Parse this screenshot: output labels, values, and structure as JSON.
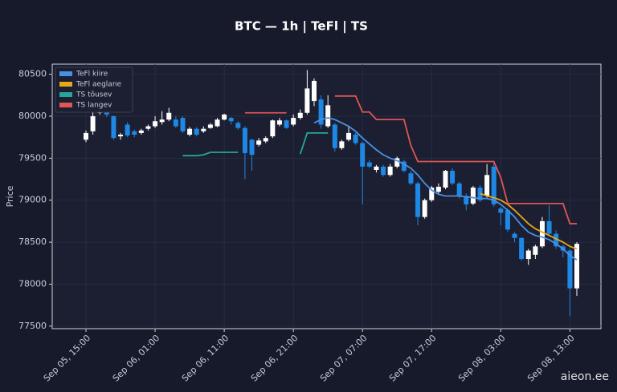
{
  "chart_data": {
    "type": "candlestick",
    "title": "BTC — 1h  |  TeFl  |  TS",
    "y_label": "Price",
    "watermark": "aieon.ee",
    "x": [
      "Sep 05, 15:00",
      "Sep 05, 16:00",
      "Sep 05, 17:00",
      "Sep 05, 18:00",
      "Sep 05, 19:00",
      "Sep 05, 20:00",
      "Sep 05, 21:00",
      "Sep 05, 22:00",
      "Sep 05, 23:00",
      "Sep 06, 00:00",
      "Sep 06, 01:00",
      "Sep 06, 02:00",
      "Sep 06, 03:00",
      "Sep 06, 04:00",
      "Sep 06, 05:00",
      "Sep 06, 06:00",
      "Sep 06, 07:00",
      "Sep 06, 08:00",
      "Sep 06, 09:00",
      "Sep 06, 10:00",
      "Sep 06, 11:00",
      "Sep 06, 12:00",
      "Sep 06, 13:00",
      "Sep 06, 14:00",
      "Sep 06, 15:00",
      "Sep 06, 16:00",
      "Sep 06, 17:00",
      "Sep 06, 18:00",
      "Sep 06, 19:00",
      "Sep 06, 20:00",
      "Sep 06, 21:00",
      "Sep 06, 22:00",
      "Sep 06, 23:00",
      "Sep 07, 00:00",
      "Sep 07, 01:00",
      "Sep 07, 02:00",
      "Sep 07, 03:00",
      "Sep 07, 04:00",
      "Sep 07, 05:00",
      "Sep 07, 06:00",
      "Sep 07, 07:00",
      "Sep 07, 08:00",
      "Sep 07, 09:00",
      "Sep 07, 10:00",
      "Sep 07, 11:00",
      "Sep 07, 12:00",
      "Sep 07, 13:00",
      "Sep 07, 14:00",
      "Sep 07, 15:00",
      "Sep 07, 16:00",
      "Sep 07, 17:00",
      "Sep 07, 18:00",
      "Sep 07, 19:00",
      "Sep 07, 20:00",
      "Sep 07, 21:00",
      "Sep 07, 22:00",
      "Sep 07, 23:00",
      "Sep 08, 00:00",
      "Sep 08, 01:00",
      "Sep 08, 02:00",
      "Sep 08, 03:00",
      "Sep 08, 04:00",
      "Sep 08, 05:00",
      "Sep 08, 06:00",
      "Sep 08, 07:00",
      "Sep 08, 08:00",
      "Sep 08, 09:00",
      "Sep 08, 10:00",
      "Sep 08, 11:00",
      "Sep 08, 12:00",
      "Sep 08, 13:00",
      "Sep 08, 14:00"
    ],
    "open": [
      79720,
      79820,
      80040,
      80070,
      80000,
      79760,
      79900,
      79820,
      79800,
      79850,
      79880,
      79930,
      79960,
      79960,
      79980,
      79780,
      79850,
      79820,
      79860,
      79880,
      79960,
      79980,
      79920,
      79860,
      79720,
      79660,
      79700,
      79760,
      79900,
      79950,
      79900,
      79980,
      80040,
      80180,
      80200,
      79880,
      79900,
      79620,
      79720,
      79780,
      79680,
      79450,
      79360,
      79400,
      79300,
      79400,
      79460,
      79320,
      79200,
      78800,
      79000,
      79100,
      79150,
      79350,
      79200,
      79050,
      78960,
      79150,
      79050,
      79400,
      78900,
      78880,
      78600,
      78550,
      78300,
      78350,
      78450,
      78750,
      78600,
      78450,
      78400,
      77950
    ],
    "high": [
      79830,
      80060,
      80120,
      80100,
      80010,
      79800,
      79930,
      79840,
      79850,
      79900,
      80000,
      80060,
      80100,
      80000,
      80000,
      79870,
      79870,
      79880,
      79920,
      79980,
      80030,
      79990,
      79940,
      79880,
      79730,
      79740,
      79760,
      79960,
      79980,
      79960,
      80020,
      80080,
      80550,
      80450,
      80250,
      80250,
      79920,
      79720,
      79870,
      79800,
      79700,
      79480,
      79420,
      79420,
      79430,
      79520,
      79480,
      79350,
      79220,
      79020,
      79170,
      79200,
      79360,
      79380,
      79220,
      79080,
      79170,
      79180,
      79430,
      79450,
      78920,
      78900,
      78620,
      78560,
      78420,
      78470,
      78800,
      78940,
      78640,
      78470,
      78420,
      78500
    ],
    "low": [
      79690,
      79780,
      80020,
      79990,
      79720,
      79720,
      79750,
      79750,
      79780,
      79830,
      79860,
      79900,
      79940,
      79860,
      79800,
      79760,
      79760,
      79800,
      79850,
      79870,
      79950,
      79900,
      79840,
      79250,
      79350,
      79640,
      79680,
      79740,
      79880,
      79850,
      79880,
      79960,
      80020,
      80120,
      79850,
      79860,
      79580,
      79600,
      79700,
      79660,
      78950,
      79380,
      79330,
      79280,
      79280,
      79380,
      79330,
      79180,
      78700,
      78780,
      78980,
      79080,
      79130,
      79180,
      79020,
      78880,
      78940,
      78980,
      79030,
      78920,
      78700,
      78620,
      78500,
      78280,
      78230,
      78300,
      78430,
      78580,
      78420,
      78320,
      77620,
      77860
    ],
    "close": [
      79800,
      80000,
      80080,
      80020,
      79740,
      79780,
      79770,
      79780,
      79830,
      79880,
      79940,
      79960,
      80040,
      79880,
      79820,
      79850,
      79780,
      79850,
      79900,
      79960,
      80020,
      79940,
      79860,
      79560,
      79540,
      79710,
      79740,
      79950,
      79950,
      79860,
      79980,
      80040,
      80330,
      80420,
      79900,
      80130,
      79620,
      79700,
      79800,
      79680,
      79400,
      79400,
      79400,
      79300,
      79400,
      79500,
      79350,
      79200,
      78800,
      79000,
      79150,
      79160,
      79350,
      79200,
      79050,
      78950,
      79150,
      79000,
      79300,
      78950,
      78850,
      78650,
      78550,
      78300,
      78400,
      78450,
      78750,
      78600,
      78450,
      78400,
      77950,
      78480
    ],
    "up_color": "#ffffff",
    "down_color": "#1e88e5",
    "series": [
      {
        "name": "TeFl kiire",
        "color": "#4a90e2",
        "values": [
          null,
          null,
          null,
          null,
          null,
          null,
          null,
          null,
          null,
          null,
          null,
          null,
          null,
          null,
          null,
          null,
          null,
          null,
          null,
          null,
          null,
          null,
          null,
          null,
          null,
          null,
          null,
          null,
          null,
          null,
          null,
          null,
          null,
          79920,
          79960,
          79980,
          79960,
          79920,
          79880,
          79820,
          79740,
          79670,
          79600,
          79540,
          79500,
          79470,
          79430,
          79380,
          79300,
          79200,
          79120,
          79070,
          79050,
          79050,
          79050,
          79040,
          79030,
          79020,
          79020,
          79000,
          78950,
          78880,
          78800,
          78700,
          78620,
          78580,
          78560,
          78530,
          78480,
          78420,
          78340,
          78290
        ]
      },
      {
        "name": "TeFl aeglane",
        "color": "#e6a817",
        "values": [
          null,
          null,
          null,
          null,
          null,
          null,
          null,
          null,
          null,
          null,
          null,
          null,
          null,
          null,
          null,
          null,
          null,
          null,
          null,
          null,
          null,
          null,
          null,
          null,
          null,
          null,
          null,
          null,
          null,
          null,
          null,
          null,
          null,
          null,
          null,
          null,
          null,
          null,
          null,
          null,
          null,
          null,
          null,
          null,
          null,
          null,
          null,
          null,
          null,
          null,
          null,
          null,
          null,
          null,
          null,
          null,
          null,
          79080,
          79050,
          79030,
          79000,
          78950,
          78880,
          78800,
          78720,
          78660,
          78620,
          78580,
          78540,
          78500,
          78450,
          78420
        ]
      },
      {
        "name": "TS tõusev",
        "color": "#26a69a",
        "values": [
          null,
          null,
          null,
          null,
          null,
          null,
          null,
          null,
          null,
          null,
          null,
          null,
          null,
          null,
          79530,
          79530,
          79530,
          79540,
          79570,
          79570,
          79570,
          79570,
          79570,
          null,
          null,
          null,
          null,
          null,
          null,
          null,
          null,
          79550,
          79800,
          79800,
          79800,
          79800,
          null,
          null,
          null,
          null,
          null,
          null,
          null,
          null,
          null,
          null,
          null,
          null,
          null,
          null,
          null,
          null,
          null,
          null,
          null,
          null,
          null,
          null,
          null,
          null,
          null,
          null,
          null,
          null,
          null,
          null,
          null,
          null,
          null,
          null,
          null,
          null
        ]
      },
      {
        "name": "TS langev",
        "color": "#e05555",
        "values": [
          null,
          null,
          null,
          null,
          null,
          null,
          null,
          null,
          null,
          null,
          null,
          null,
          null,
          null,
          null,
          null,
          null,
          null,
          null,
          null,
          null,
          null,
          null,
          80040,
          80040,
          80040,
          80040,
          80040,
          80040,
          80040,
          null,
          null,
          null,
          null,
          null,
          null,
          80240,
          80240,
          80240,
          80240,
          80050,
          80050,
          79960,
          79960,
          79960,
          79960,
          79960,
          79650,
          79460,
          79460,
          79460,
          79460,
          79460,
          79460,
          79460,
          79460,
          79460,
          79460,
          79460,
          79460,
          79270,
          78960,
          78960,
          78960,
          78960,
          78960,
          78960,
          78960,
          78960,
          78960,
          78720,
          78720
        ]
      }
    ],
    "ylim": [
      77470,
      80620
    ],
    "yticks": [
      77500,
      78000,
      78500,
      79000,
      79500,
      80000,
      80500
    ],
    "xticks": [
      "Sep 05, 15:00",
      "Sep 06, 01:00",
      "Sep 06, 11:00",
      "Sep 06, 21:00",
      "Sep 07, 07:00",
      "Sep 07, 17:00",
      "Sep 08, 03:00",
      "Sep 08, 13:00"
    ],
    "grid": true,
    "legend": "upper left"
  }
}
